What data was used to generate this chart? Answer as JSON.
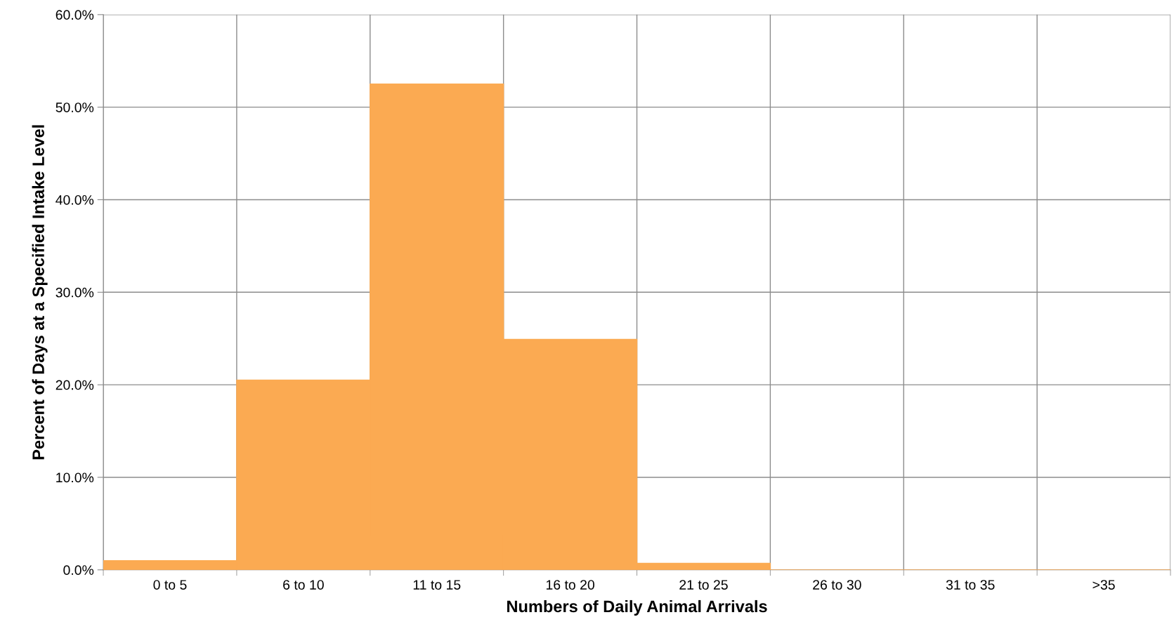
{
  "chart_data": {
    "type": "bar",
    "xlabel": "Numbers of Daily Animal Arrivals",
    "ylabel": "Percent of Days at a Specified Intake Level",
    "categories": [
      "0 to 5",
      "6 to 10",
      "11 to 15",
      "16 to 20",
      "21 to 25",
      "26 to 30",
      "31 to 35",
      ">35"
    ],
    "values": [
      1.0,
      20.5,
      52.5,
      24.9,
      0.7,
      0,
      0,
      0
    ],
    "color": "#fbaa52",
    "ylim": [
      0,
      60
    ],
    "yticks": [
      {
        "value": 0,
        "label": "0.0%"
      },
      {
        "value": 10,
        "label": "10.0%"
      },
      {
        "value": 20,
        "label": "20.0%"
      },
      {
        "value": 30,
        "label": "30.0%"
      },
      {
        "value": 40,
        "label": "40.0%"
      },
      {
        "value": 50,
        "label": "50.0%"
      },
      {
        "value": 60,
        "label": "60.0%"
      }
    ],
    "grid": true
  }
}
